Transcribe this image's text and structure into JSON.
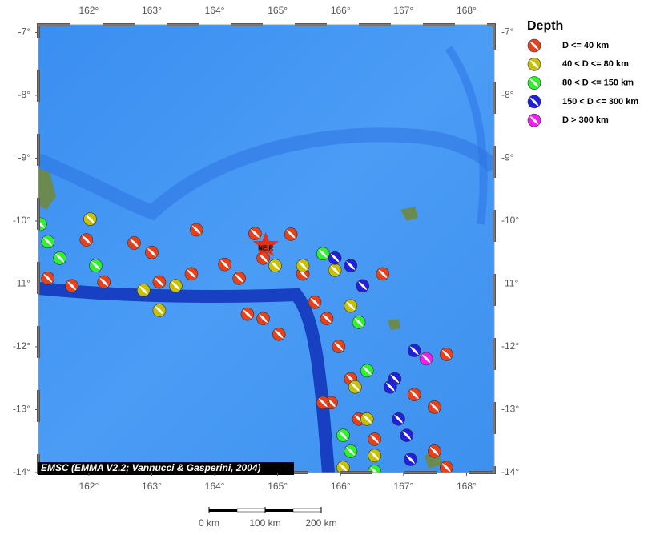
{
  "map": {
    "credit": "EMSC (EMMA V2.2; Vannucci & Gasperini, 2004)",
    "lonlim": [
      161.2,
      168.44
    ],
    "latlim": [
      -14,
      -6.88
    ],
    "lonticks": [
      {
        "value": 162,
        "label": "162°"
      },
      {
        "value": 163,
        "label": "163°"
      },
      {
        "value": 164,
        "label": "164°"
      },
      {
        "value": 165,
        "label": "165°"
      },
      {
        "value": 166,
        "label": "166°"
      },
      {
        "value": 167,
        "label": "167°"
      },
      {
        "value": 168,
        "label": "168°"
      }
    ],
    "latticks": [
      {
        "value": -7,
        "label": "-7°"
      },
      {
        "value": -8,
        "label": "-8°"
      },
      {
        "value": -9,
        "label": "-9°"
      },
      {
        "value": -10,
        "label": "-10°"
      },
      {
        "value": -11,
        "label": "-11°"
      },
      {
        "value": -12,
        "label": "-12°"
      },
      {
        "value": -13,
        "label": "-13°"
      },
      {
        "value": -14,
        "label": "-14°"
      }
    ],
    "legend": {
      "title": "Depth",
      "entries": [
        {
          "label": "D <= 40 km",
          "color": "#e8401a"
        },
        {
          "label": "40 < D <= 80 km",
          "color": "#c8c000"
        },
        {
          "label": "80 < D <= 150 km",
          "color": "#30f030"
        },
        {
          "label": "150 < D <= 300 km",
          "color": "#2020e0"
        },
        {
          "label": "D > 300 km",
          "color": "#f020f0"
        }
      ]
    },
    "marker": {
      "label": "NEIR",
      "lon": 164.81,
      "lat": -10.39
    },
    "events": [
      [
        161.96,
        -10.3,
        0
      ],
      [
        162.72,
        -10.35,
        0
      ],
      [
        163.0,
        -10.5,
        0
      ],
      [
        163.71,
        -10.14,
        0
      ],
      [
        164.64,
        -10.2,
        0
      ],
      [
        165.21,
        -10.21,
        0
      ],
      [
        164.16,
        -10.69,
        0
      ],
      [
        164.39,
        -10.91,
        0
      ],
      [
        163.63,
        -10.84,
        0
      ],
      [
        163.12,
        -10.97,
        0
      ],
      [
        162.24,
        -10.97,
        0
      ],
      [
        161.35,
        -10.91,
        0
      ],
      [
        161.73,
        -11.03,
        0
      ],
      [
        164.77,
        -10.59,
        0
      ],
      [
        165.4,
        -10.84,
        0
      ],
      [
        165.59,
        -11.29,
        0
      ],
      [
        165.78,
        -11.55,
        0
      ],
      [
        165.97,
        -11.995,
        0
      ],
      [
        166.16,
        -12.51,
        0
      ],
      [
        165.85,
        -12.89,
        0
      ],
      [
        166.29,
        -13.15,
        0
      ],
      [
        166.54,
        -13.47,
        0
      ],
      [
        167.17,
        -12.76,
        0
      ],
      [
        167.49,
        -12.96,
        0
      ],
      [
        167.68,
        -12.12,
        0
      ],
      [
        166.67,
        -10.84,
        0
      ],
      [
        164.77,
        -11.55,
        0
      ],
      [
        165.02,
        -11.8,
        0
      ],
      [
        164.52,
        -11.48,
        0
      ],
      [
        167.68,
        -13.92,
        0
      ],
      [
        167.49,
        -13.66,
        0
      ],
      [
        165.72,
        -12.89,
        0
      ],
      [
        162.02,
        -9.97,
        1
      ],
      [
        163.12,
        -11.42,
        1
      ],
      [
        163.38,
        -11.03,
        1
      ],
      [
        162.87,
        -11.1,
        1
      ],
      [
        164.96,
        -10.71,
        1
      ],
      [
        165.4,
        -10.71,
        1
      ],
      [
        165.91,
        -10.78,
        1
      ],
      [
        166.16,
        -11.35,
        1
      ],
      [
        166.23,
        -12.64,
        1
      ],
      [
        166.42,
        -13.15,
        1
      ],
      [
        166.54,
        -13.73,
        1
      ],
      [
        166.04,
        -13.92,
        1
      ],
      [
        161.23,
        -10.05,
        2
      ],
      [
        161.35,
        -10.33,
        2
      ],
      [
        161.54,
        -10.59,
        2
      ],
      [
        162.11,
        -10.71,
        2
      ],
      [
        165.72,
        -10.52,
        2
      ],
      [
        166.29,
        -11.61,
        2
      ],
      [
        166.42,
        -12.38,
        2
      ],
      [
        166.04,
        -13.41,
        2
      ],
      [
        166.54,
        -13.98,
        2
      ],
      [
        166.16,
        -13.66,
        2
      ],
      [
        165.91,
        -10.59,
        3
      ],
      [
        166.16,
        -10.71,
        3
      ],
      [
        166.35,
        -11.03,
        3
      ],
      [
        166.86,
        -12.51,
        3
      ],
      [
        166.92,
        -13.15,
        3
      ],
      [
        167.05,
        -13.41,
        3
      ],
      [
        167.11,
        -13.79,
        3
      ],
      [
        167.17,
        -12.06,
        3
      ],
      [
        166.79,
        -12.64,
        3
      ],
      [
        167.36,
        -12.19,
        4
      ]
    ],
    "scalebar": {
      "ticks": [
        {
          "value": 0,
          "label": "0 km"
        },
        {
          "value": 100,
          "label": "100 km"
        },
        {
          "value": 200,
          "label": "200 km"
        }
      ]
    }
  }
}
